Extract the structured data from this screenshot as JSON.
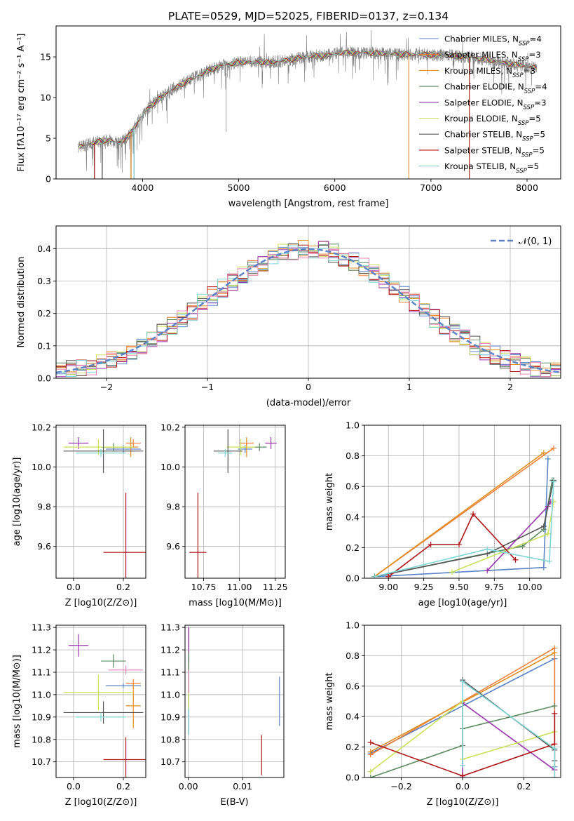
{
  "figure": {
    "title": "PLATE=0529, MJD=52025, FIBERID=0137, z=0.134"
  },
  "colors": {
    "chabrier_miles": "#5a83c8",
    "salpeter_miles": "#f07f39",
    "kroupa_miles": "#e08f22",
    "chabrier_elodie": "#5a8a60",
    "salpeter_elodie": "#9b32b0",
    "kroupa_elodie": "#c9e25a",
    "chabrier_stelib": "#555555",
    "salpeter_stelib": "#b01515",
    "kroupa_stelib": "#7fd6d6",
    "histogram_pink": "#e887b8",
    "gaussian": "#5a83c8",
    "grid": "#b0b0b0",
    "data_spectrum": "#808080"
  },
  "chart_data": [
    {
      "id": "spectrum",
      "type": "line",
      "title": "PLATE=0529, MJD=52025, FIBERID=0137, z=0.134",
      "xlabel": "wavelength [Angstrom, rest frame]",
      "ylabel": "Flux [fλ10⁻¹⁷ erg cm⁻² s⁻¹ A⁻¹]",
      "xlim": [
        3100,
        8350
      ],
      "ylim": [
        0,
        18.8
      ],
      "xticks": [
        4000,
        5000,
        6000,
        7000,
        8000
      ],
      "yticks": [
        0,
        5,
        10,
        15
      ],
      "grid": false,
      "legend_position": "top-right",
      "legend": [
        "Chabrier MILES, NSSP=4",
        "Salpeter MILES, NSSP=3",
        "Kroupa MILES, NSSP=3",
        "Chabrier ELODIE, NSSP=4",
        "Salpeter ELODIE, NSSP=3",
        "Kroupa ELODIE, NSSP=5",
        "Chabrier STELIB, NSSP=5",
        "Salpeter STELIB, NSSP=5",
        "Kroupa STELIB, NSSP=5"
      ],
      "continuum": {
        "x": [
          3350,
          3450,
          3550,
          3650,
          3750,
          3850,
          3950,
          4050,
          4150,
          4250,
          4400,
          4550,
          4700,
          4850,
          5000,
          5150,
          5300,
          5500,
          5700,
          5900,
          6100,
          6300,
          6500,
          6700,
          6900,
          7100,
          7300,
          7500,
          7700,
          7900,
          8100
        ],
        "y": [
          4.0,
          4.3,
          4.6,
          4.8,
          4.4,
          5.2,
          7.0,
          8.6,
          9.6,
          10.6,
          11.6,
          12.5,
          13.4,
          14.0,
          14.3,
          14.4,
          14.3,
          14.6,
          15.0,
          15.2,
          15.5,
          15.5,
          15.4,
          15.3,
          15.3,
          15.2,
          15.1,
          14.8,
          14.4,
          14.0,
          13.7
        ]
      },
      "dropouts_x": [
        3500,
        3580,
        3880,
        3910,
        6770,
        7400
      ]
    },
    {
      "id": "residuals",
      "type": "histogram",
      "xlabel": "(data-model)/error",
      "ylabel": "Normed distribution",
      "xlim": [
        -2.5,
        2.5
      ],
      "ylim": [
        0,
        0.47
      ],
      "xticks": [
        -2,
        -1,
        0,
        1,
        2
      ],
      "yticks": [
        0.0,
        0.1,
        0.2,
        0.3,
        0.4
      ],
      "grid": true,
      "legend_position": "top-right",
      "legend": [
        "𝒩(0, 1)"
      ],
      "bin_width": 0.1,
      "gaussian_mean": 0,
      "gaussian_sigma": 1
    },
    {
      "id": "age_vs_z",
      "type": "errorbar",
      "xlabel": "Z [log10(Z/Z⊙)]",
      "ylabel": "age  [log10(age/yr)]",
      "xlim": [
        -0.07,
        0.29
      ],
      "ylim": [
        9.44,
        10.21
      ],
      "xticks": [
        0.0,
        0.2
      ],
      "yticks": [
        9.6,
        9.8,
        10.0,
        10.2
      ],
      "grid": true,
      "points": [
        {
          "model": "chabrier_miles",
          "x": 0.2,
          "y": 10.09,
          "xerr": 0.07,
          "yerr": 0.02
        },
        {
          "model": "salpeter_miles",
          "x": 0.24,
          "y": 10.12,
          "xerr": 0.03,
          "yerr": 0.02
        },
        {
          "model": "kroupa_miles",
          "x": 0.23,
          "y": 10.1,
          "xerr": 0.03,
          "yerr": 0.05
        },
        {
          "model": "chabrier_elodie",
          "x": 0.16,
          "y": 10.1,
          "xerr": 0.05,
          "yerr": 0.02
        },
        {
          "model": "salpeter_elodie",
          "x": 0.02,
          "y": 10.12,
          "xerr": 0.04,
          "yerr": 0.03
        },
        {
          "model": "kroupa_elodie",
          "x": 0.1,
          "y": 10.1,
          "xerr": 0.14,
          "yerr": 0.04
        },
        {
          "model": "chabrier_stelib",
          "x": 0.12,
          "y": 10.08,
          "xerr": 0.16,
          "yerr": 0.11
        },
        {
          "model": "salpeter_stelib",
          "x": 0.21,
          "y": 9.57,
          "xerr": 0.09,
          "yerr": 0.3
        },
        {
          "model": "kroupa_stelib",
          "x": 0.11,
          "y": 10.07,
          "xerr": 0.1,
          "yerr": 0.02
        }
      ]
    },
    {
      "id": "age_vs_mass",
      "type": "errorbar",
      "xlabel": "mass [log10(M/M⊙)]",
      "ylabel": "",
      "xlim": [
        10.62,
        11.32
      ],
      "ylim": [
        9.44,
        10.21
      ],
      "xticks": [
        10.75,
        11.0,
        11.25
      ],
      "yticks": [
        9.6,
        9.8,
        10.0,
        10.2
      ],
      "grid": true,
      "points": [
        {
          "model": "chabrier_miles",
          "x": 11.04,
          "y": 10.09,
          "xerr": 0.05,
          "yerr": 0.02
        },
        {
          "model": "salpeter_miles",
          "x": 11.05,
          "y": 10.12,
          "xerr": 0.05,
          "yerr": 0.02
        },
        {
          "model": "kroupa_miles",
          "x": 11.05,
          "y": 10.1,
          "xerr": 0.04,
          "yerr": 0.05
        },
        {
          "model": "chabrier_elodie",
          "x": 11.14,
          "y": 10.1,
          "xerr": 0.05,
          "yerr": 0.02
        },
        {
          "model": "salpeter_elodie",
          "x": 11.22,
          "y": 10.12,
          "xerr": 0.04,
          "yerr": 0.03
        },
        {
          "model": "kroupa_elodie",
          "x": 11.01,
          "y": 10.1,
          "xerr": 0.1,
          "yerr": 0.04
        },
        {
          "model": "chabrier_stelib",
          "x": 10.92,
          "y": 10.08,
          "xerr": 0.1,
          "yerr": 0.11
        },
        {
          "model": "salpeter_stelib",
          "x": 10.71,
          "y": 9.57,
          "xerr": 0.06,
          "yerr": 0.3
        },
        {
          "model": "kroupa_stelib",
          "x": 10.9,
          "y": 10.07,
          "xerr": 0.05,
          "yerr": 0.02
        }
      ]
    },
    {
      "id": "mass_weight_vs_age",
      "type": "line",
      "xlabel": "age  [log10(age/yr)]",
      "ylabel": "mass weight",
      "xlim": [
        8.83,
        10.22
      ],
      "ylim": [
        0,
        1.0
      ],
      "xticks": [
        9.0,
        9.25,
        9.5,
        9.75,
        10.0
      ],
      "yticks": [
        0.0,
        0.2,
        0.4,
        0.6,
        0.8,
        1.0
      ],
      "grid": true,
      "series": [
        {
          "model": "chabrier_miles",
          "x": [
            8.9,
            10.1,
            10.13
          ],
          "y": [
            0.01,
            0.07,
            0.78
          ]
        },
        {
          "model": "salpeter_miles",
          "x": [
            8.9,
            10.17
          ],
          "y": [
            0.01,
            0.85
          ]
        },
        {
          "model": "kroupa_miles",
          "x": [
            8.9,
            10.1
          ],
          "y": [
            0.01,
            0.82
          ]
        },
        {
          "model": "chabrier_elodie",
          "x": [
            8.9,
            9.95,
            10.1,
            10.16
          ],
          "y": [
            0.01,
            0.21,
            0.32,
            0.64
          ]
        },
        {
          "model": "salpeter_elodie",
          "x": [
            9.7,
            10.13,
            10.15
          ],
          "y": [
            0.05,
            0.47,
            0.5
          ]
        },
        {
          "model": "kroupa_elodie",
          "x": [
            9.45,
            10.13,
            10.17
          ],
          "y": [
            0.04,
            0.29,
            0.5
          ]
        },
        {
          "model": "chabrier_stelib",
          "x": [
            8.9,
            9.7,
            10.1,
            10.17
          ],
          "y": [
            0.01,
            0.16,
            0.34,
            0.64
          ]
        },
        {
          "model": "salpeter_stelib",
          "x": [
            9.0,
            9.3,
            9.5,
            9.6,
            9.9
          ],
          "y": [
            0.01,
            0.22,
            0.22,
            0.42,
            0.12
          ]
        },
        {
          "model": "kroupa_stelib",
          "x": [
            8.9,
            9.7,
            10.14,
            10.17
          ],
          "y": [
            0.01,
            0.19,
            0.11,
            0.63
          ]
        }
      ]
    },
    {
      "id": "mass_vs_z",
      "type": "errorbar",
      "xlabel": "Z [log10(Z/Z⊙)]",
      "ylabel": "mass [log10(M/M⊙)]",
      "xlim": [
        -0.07,
        0.29
      ],
      "ylim": [
        10.63,
        11.31
      ],
      "xticks": [
        0.0,
        0.2
      ],
      "yticks": [
        10.7,
        10.8,
        10.9,
        11.0,
        11.1,
        11.2,
        11.3
      ],
      "grid": true,
      "points": [
        {
          "model": "chabrier_miles",
          "x": 0.2,
          "y": 11.04,
          "xerr": 0.07,
          "yerr": 0.01
        },
        {
          "model": "salpeter_miles",
          "x": 0.24,
          "y": 11.05,
          "xerr": 0.03,
          "yerr": 0.02
        },
        {
          "model": "kroupa_miles",
          "x": 0.24,
          "y": 10.95,
          "xerr": 0.03,
          "yerr": 0.1
        },
        {
          "model": "chabrier_elodie",
          "x": 0.16,
          "y": 11.15,
          "xerr": 0.05,
          "yerr": 0.03
        },
        {
          "model": "salpeter_elodie",
          "x": 0.02,
          "y": 11.22,
          "xerr": 0.04,
          "yerr": 0.05
        },
        {
          "model": "kroupa_elodie",
          "x": 0.1,
          "y": 11.01,
          "xerr": 0.14,
          "yerr": 0.08
        },
        {
          "model": "chabrier_stelib",
          "x": 0.12,
          "y": 10.92,
          "xerr": 0.16,
          "yerr": 0.05
        },
        {
          "model": "salpeter_stelib",
          "x": 0.21,
          "y": 10.71,
          "xerr": 0.09,
          "yerr": 0.1
        },
        {
          "model": "kroupa_stelib",
          "x": 0.11,
          "y": 10.9,
          "xerr": 0.1,
          "yerr": 0.02
        },
        {
          "model": "histogram_pink",
          "x": 0.21,
          "y": 11.11,
          "xerr": 0.07,
          "yerr": 0.02
        }
      ]
    },
    {
      "id": "mass_vs_ebv",
      "type": "errorbar",
      "xlabel": "E(B-V)",
      "ylabel": "",
      "xlim": [
        -0.0006,
        0.0176
      ],
      "ylim": [
        10.63,
        11.31
      ],
      "xticks": [
        0.0,
        0.01
      ],
      "yticks": [
        10.7,
        10.8,
        10.9,
        11.0,
        11.1,
        11.2,
        11.3
      ],
      "grid": true,
      "points": [
        {
          "model": "chabrier_miles",
          "x": 0.0168,
          "y": 10.97,
          "xerr": 0,
          "yerr": 0.11
        },
        {
          "model": "salpeter_stelib",
          "x": 0.0135,
          "y": 10.73,
          "xerr": 0,
          "yerr": 0.09
        },
        {
          "model": "salpeter_elodie",
          "x": 0.0001,
          "y": 11.22,
          "xerr": 0,
          "yerr": 0.08
        },
        {
          "model": "kroupa_elodie",
          "x": 0.0001,
          "y": 11.01,
          "xerr": 0,
          "yerr": 0.07
        },
        {
          "model": "chabrier_elodie",
          "x": 0.0001,
          "y": 11.15,
          "xerr": 0,
          "yerr": 0.04
        },
        {
          "model": "kroupa_stelib",
          "x": 0.0001,
          "y": 10.88,
          "xerr": 0,
          "yerr": 0.06
        },
        {
          "model": "histogram_pink",
          "x": 0.0001,
          "y": 11.06,
          "xerr": 0,
          "yerr": 0.05
        }
      ]
    },
    {
      "id": "mass_weight_vs_z",
      "type": "line",
      "xlabel": "Z [log10(Z/Z⊙)]",
      "ylabel": "mass weight",
      "xlim": [
        -0.32,
        0.32
      ],
      "ylim": [
        0,
        1.0
      ],
      "xticks": [
        -0.2,
        0.0,
        0.2
      ],
      "yticks": [
        0.0,
        0.2,
        0.4,
        0.6,
        0.8,
        1.0
      ],
      "grid": true,
      "series": [
        {
          "model": "chabrier_miles",
          "x": [
            -0.3,
            0.3,
            0.3
          ],
          "y": [
            0.16,
            0.78,
            0.07
          ]
        },
        {
          "model": "salpeter_miles",
          "x": [
            -0.3,
            0.3,
            0.3
          ],
          "y": [
            0.15,
            0.85,
            0.0
          ]
        },
        {
          "model": "kroupa_miles",
          "x": [
            -0.3,
            0.3
          ],
          "y": [
            0.17,
            0.82
          ]
        },
        {
          "model": "chabrier_elodie",
          "x": [
            -0.3,
            0.0,
            0.0,
            0.3
          ],
          "y": [
            0.0,
            0.21,
            0.32,
            0.47
          ]
        },
        {
          "model": "salpeter_elodie",
          "x": [
            0.0,
            0.0,
            0.3
          ],
          "y": [
            0.0,
            0.49,
            0.05
          ]
        },
        {
          "model": "kroupa_elodie",
          "x": [
            -0.3,
            0.0,
            0.0,
            0.3
          ],
          "y": [
            0.04,
            0.5,
            0.12,
            0.3
          ]
        },
        {
          "model": "chabrier_stelib",
          "x": [
            0.0,
            0.3,
            0.3
          ],
          "y": [
            0.64,
            0.18,
            0.11
          ]
        },
        {
          "model": "salpeter_stelib",
          "x": [
            -0.3,
            0.0,
            0.3,
            0.3
          ],
          "y": [
            0.23,
            0.01,
            0.22,
            0.42
          ]
        },
        {
          "model": "kroupa_stelib",
          "x": [
            0.0,
            0.0,
            0.3,
            0.3
          ],
          "y": [
            0.08,
            0.63,
            0.19,
            0.0
          ]
        }
      ]
    }
  ]
}
